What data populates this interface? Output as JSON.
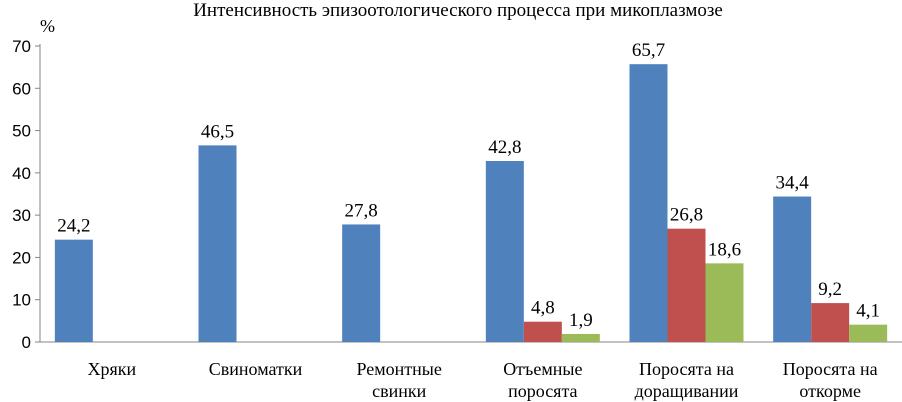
{
  "chart_data": {
    "type": "bar",
    "title": "Интенсивность эпизоотологического процесса при микоплазмозе",
    "ylabel": "%",
    "xlabel": "",
    "ylim": [
      0,
      70
    ],
    "yticks": [
      0,
      10,
      20,
      30,
      40,
      50,
      60,
      70
    ],
    "grid": false,
    "legend": "none",
    "categories": [
      [
        "Хряки"
      ],
      [
        "Свиноматки"
      ],
      [
        "Ремонтные",
        "свинки"
      ],
      [
        "Отъемные",
        "поросята"
      ],
      [
        "Поросята на",
        "доращивании"
      ],
      [
        "Поросята на",
        "откорме"
      ]
    ],
    "series": [
      {
        "values": [
          24.2,
          46.5,
          27.8,
          42.8,
          65.7,
          34.4
        ],
        "labels": [
          "24,2",
          "46,5",
          "27,8",
          "42,8",
          "65,7",
          "34,4"
        ],
        "color": "#4f81bd"
      },
      {
        "values": [
          null,
          null,
          null,
          4.8,
          26.8,
          9.2
        ],
        "labels": [
          null,
          null,
          null,
          "4,8",
          "26,8",
          "9,2"
        ],
        "color": "#c0504d"
      },
      {
        "values": [
          null,
          null,
          null,
          1.9,
          18.6,
          4.1
        ],
        "labels": [
          null,
          null,
          null,
          "1,9",
          "18,6",
          "4,1"
        ],
        "color": "#9bbb59"
      }
    ]
  }
}
